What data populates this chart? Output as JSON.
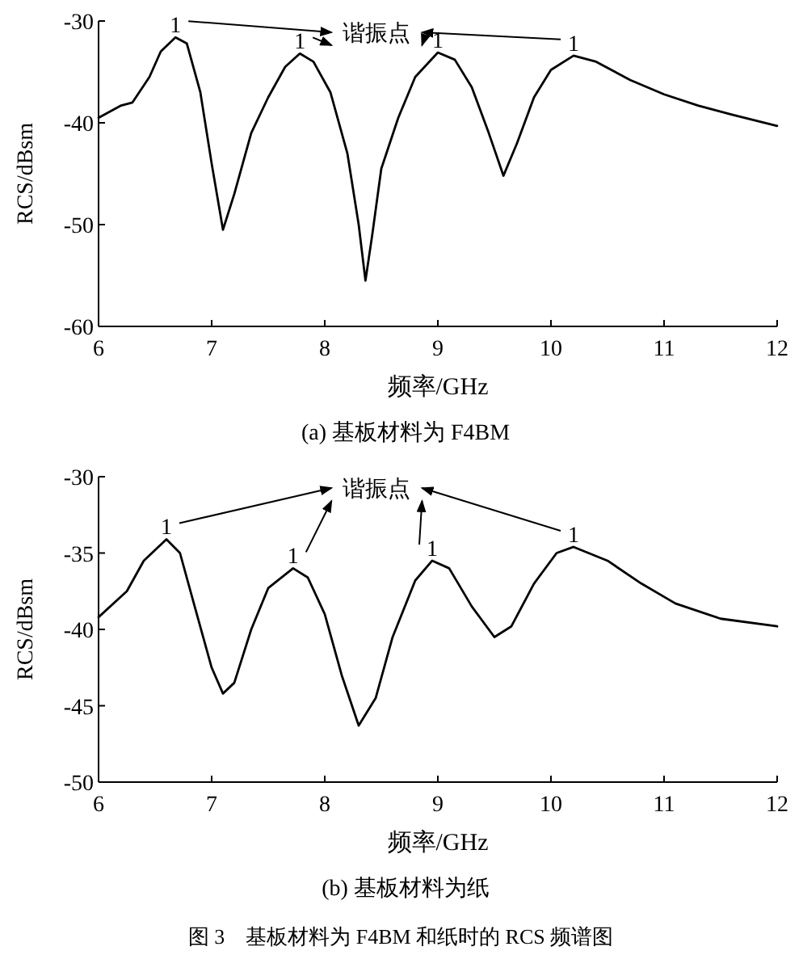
{
  "chart_data": [
    {
      "type": "line",
      "title": "(a) 基板材料为 F4BM",
      "xlabel": "频率/GHz",
      "ylabel": "RCS/dBsm",
      "x": [
        6.0,
        6.2,
        6.3,
        6.45,
        6.55,
        6.68,
        6.78,
        6.9,
        7.0,
        7.1,
        7.2,
        7.35,
        7.5,
        7.65,
        7.78,
        7.9,
        8.05,
        8.2,
        8.3,
        8.36,
        8.42,
        8.5,
        8.65,
        8.8,
        9.0,
        9.15,
        9.3,
        9.45,
        9.58,
        9.7,
        9.85,
        10.0,
        10.2,
        10.4,
        10.7,
        11.0,
        11.3,
        11.6,
        12.0
      ],
      "series": [
        {
          "color": "#000000",
          "values": [
            -39.5,
            -38.3,
            -38,
            -35.5,
            -33,
            -31.6,
            -32.2,
            -37,
            -44,
            -50.5,
            -47,
            -41,
            -37.5,
            -34.5,
            -33.2,
            -34,
            -37,
            -43,
            -50,
            -55.5,
            -51,
            -44.5,
            -39.5,
            -35.5,
            -33.1,
            -33.8,
            -36.5,
            -41,
            -45.2,
            -42,
            -37.5,
            -34.8,
            -33.4,
            -34,
            -35.8,
            -37.2,
            -38.3,
            -39.2,
            -40.3
          ]
        }
      ],
      "xlim": [
        6,
        12
      ],
      "ylim": [
        -60,
        -30
      ],
      "xticks": [
        6,
        7,
        8,
        9,
        10,
        11,
        12
      ],
      "yticks": [
        -60,
        -50,
        -40,
        -30
      ],
      "annotations": [
        "谐振点",
        {
          "text": "1",
          "x": 6.68,
          "y": -31.6
        },
        {
          "text": "1",
          "x": 7.78,
          "y": -33.2
        },
        {
          "text": "1",
          "x": 9.0,
          "y": -33.1
        },
        {
          "text": "1",
          "x": 10.2,
          "y": -33.4
        }
      ]
    },
    {
      "type": "line",
      "title": "(b) 基板材料为纸",
      "xlabel": "频率/GHz",
      "ylabel": "RCS/dBsm",
      "x": [
        6.0,
        6.25,
        6.4,
        6.6,
        6.72,
        6.85,
        7.0,
        7.1,
        7.2,
        7.35,
        7.5,
        7.72,
        7.85,
        8.0,
        8.15,
        8.3,
        8.45,
        8.6,
        8.8,
        8.95,
        9.1,
        9.3,
        9.5,
        9.65,
        9.85,
        10.05,
        10.2,
        10.5,
        10.8,
        11.1,
        11.5,
        12.0
      ],
      "series": [
        {
          "color": "#000000",
          "values": [
            -39.2,
            -37.5,
            -35.5,
            -34.1,
            -35,
            -38.5,
            -42.5,
            -44.2,
            -43.5,
            -40,
            -37.3,
            -36,
            -36.6,
            -39,
            -43,
            -46.3,
            -44.5,
            -40.5,
            -36.8,
            -35.5,
            -36,
            -38.5,
            -40.5,
            -39.8,
            -37,
            -35,
            -34.6,
            -35.5,
            -37,
            -38.3,
            -39.3,
            -39.8
          ]
        }
      ],
      "xlim": [
        6,
        12
      ],
      "ylim": [
        -50,
        -30
      ],
      "xticks": [
        6,
        7,
        8,
        9,
        10,
        11,
        12
      ],
      "yticks": [
        -50,
        -45,
        -40,
        -35,
        -30
      ],
      "annotations": [
        "谐振点",
        {
          "text": "1",
          "x": 6.6,
          "y": -34.1
        },
        {
          "text": "1",
          "x": 7.72,
          "y": -36
        },
        {
          "text": "1",
          "x": 8.95,
          "y": -35.5
        },
        {
          "text": "1",
          "x": 10.2,
          "y": -34.6
        },
        "图 3　基板材料为 F4BM 和纸时的 RCS 频谱图"
      ]
    }
  ]
}
